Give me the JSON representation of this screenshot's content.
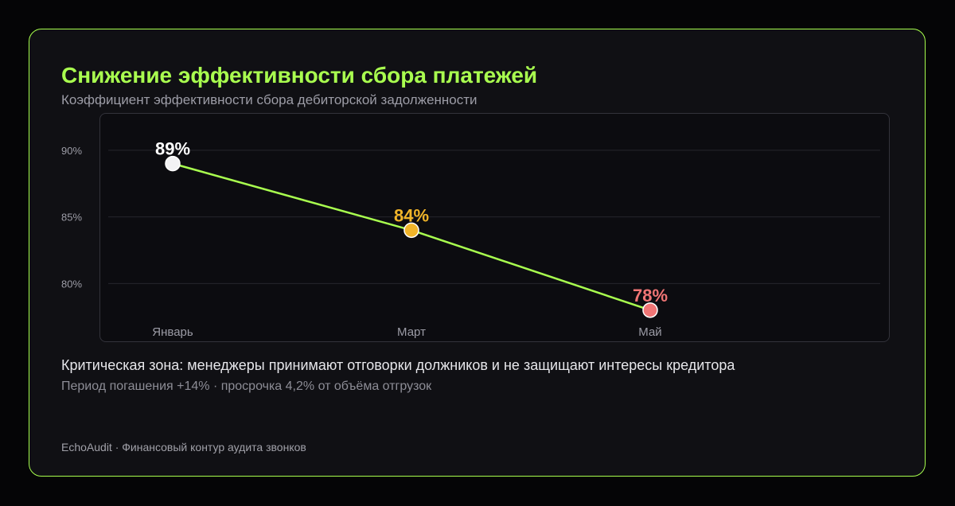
{
  "card": {
    "title": "Снижение эффективности сбора платежей",
    "subtitle": "Коэффициент эффективности сбора дебиторской задолженности",
    "note_main": "Критическая зона: менеджеры принимают отговорки должников и не защищают интересы кредитора",
    "note_sub": "Период погашения +14% · просрочка 4,2% от объёма отгрузок",
    "footer": "EchoAudit · Финансовый контур аудита звонков"
  },
  "colors": {
    "accent": "#a9ff4f",
    "line": "#a9ff4f",
    "grid": "#26262c",
    "tick_label": "#9c9ca6"
  },
  "chart_data": {
    "type": "line",
    "categories": [
      "Январь",
      "Март",
      "Май"
    ],
    "values": [
      89,
      84,
      78
    ],
    "data_labels": [
      "89%",
      "84%",
      "78%"
    ],
    "point_colors": [
      "#f2f2f4",
      "#f0b429",
      "#f07575"
    ],
    "label_colors": [
      "#ffffff",
      "#f0b429",
      "#f07575"
    ],
    "y_ticks": [
      80,
      85,
      90
    ],
    "y_tick_labels": [
      "80%",
      "85%",
      "90%"
    ],
    "ylim": [
      75.6,
      92.8
    ],
    "grid": true,
    "title": "Снижение эффективности сбора платежей",
    "subtitle": "Коэффициент эффективности сбора дебиторской задолженности",
    "xlabel": "",
    "ylabel": ""
  }
}
